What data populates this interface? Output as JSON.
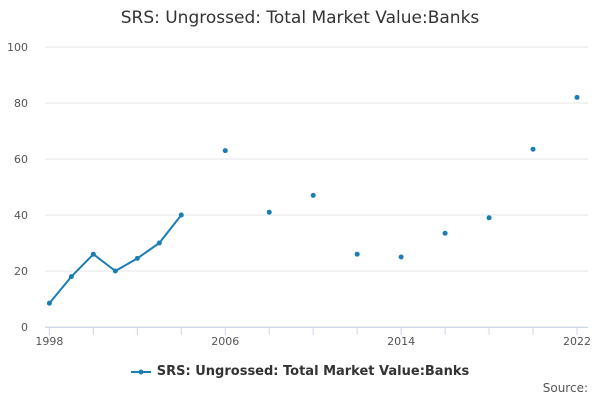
{
  "chart_data": {
    "type": "line",
    "title": "SRS: Ungrossed: Total Market Value:Banks",
    "xlabel": "",
    "ylabel": "",
    "xlim": [
      1997.8,
      2022.5
    ],
    "ylim": [
      0,
      100
    ],
    "x_ticks": [
      1998,
      2006,
      2014,
      2022
    ],
    "y_ticks": [
      0,
      20,
      40,
      60,
      80,
      100
    ],
    "grid": "horizontal",
    "legend_position": "bottom-center",
    "series": [
      {
        "name": "SRS: Ungrossed: Total Market Value:Banks",
        "color": "#1a7db3",
        "points": [
          {
            "x": 1998,
            "y": 8.5
          },
          {
            "x": 1999,
            "y": 18.0
          },
          {
            "x": 2000,
            "y": 26.0
          },
          {
            "x": 2001,
            "y": 20.0
          },
          {
            "x": 2002,
            "y": 24.5
          },
          {
            "x": 2003,
            "y": 30.0
          },
          {
            "x": 2004,
            "y": 40.0
          },
          {
            "x": 2006,
            "y": 63.0
          },
          {
            "x": 2008,
            "y": 41.0
          },
          {
            "x": 2010,
            "y": 47.0
          },
          {
            "x": 2012,
            "y": 26.0
          },
          {
            "x": 2014,
            "y": 25.0
          },
          {
            "x": 2016,
            "y": 33.5
          },
          {
            "x": 2018,
            "y": 39.0
          },
          {
            "x": 2020,
            "y": 63.5
          },
          {
            "x": 2022,
            "y": 82.0
          }
        ]
      }
    ]
  },
  "source_label": "Source:"
}
